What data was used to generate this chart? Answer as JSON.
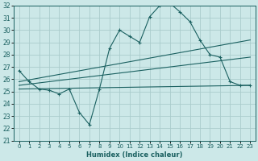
{
  "xlabel": "Humidex (Indice chaleur)",
  "bg_color": "#cce8e8",
  "grid_color": "#aacccc",
  "line_color": "#1a6060",
  "xlim": [
    -0.5,
    23.5
  ],
  "ylim": [
    21,
    32
  ],
  "yticks": [
    21,
    22,
    23,
    24,
    25,
    26,
    27,
    28,
    29,
    30,
    31,
    32
  ],
  "xticks": [
    0,
    1,
    2,
    3,
    4,
    5,
    6,
    7,
    8,
    9,
    10,
    11,
    12,
    13,
    14,
    15,
    16,
    17,
    18,
    19,
    20,
    21,
    22,
    23
  ],
  "series": [
    {
      "x": [
        0,
        1,
        2,
        3,
        4,
        5,
        6,
        7,
        8,
        9,
        10,
        11,
        12,
        13,
        14,
        15,
        16,
        17,
        18,
        19,
        20,
        21,
        22,
        23
      ],
      "y": [
        26.7,
        25.8,
        25.2,
        25.1,
        24.8,
        25.2,
        23.3,
        22.3,
        25.2,
        28.5,
        30.0,
        29.5,
        29.0,
        31.1,
        32.0,
        32.2,
        31.5,
        30.7,
        29.2,
        28.0,
        27.8,
        25.8,
        25.5,
        25.5
      ],
      "marker": true
    },
    {
      "x": [
        0,
        23
      ],
      "y": [
        25.8,
        29.2
      ],
      "marker": false
    },
    {
      "x": [
        0,
        23
      ],
      "y": [
        25.5,
        27.8
      ],
      "marker": false
    },
    {
      "x": [
        0,
        23
      ],
      "y": [
        25.2,
        25.5
      ],
      "marker": false
    }
  ]
}
